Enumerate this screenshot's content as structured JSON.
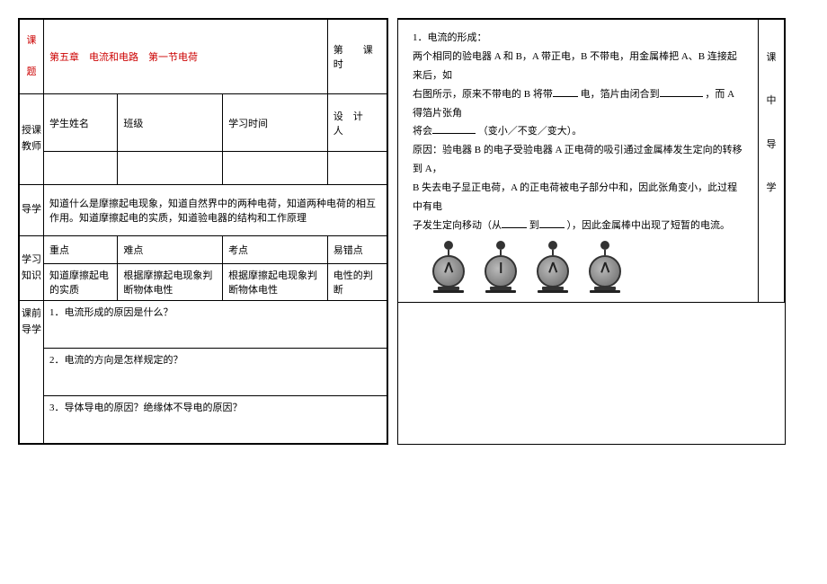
{
  "left": {
    "labels": {
      "ke_ti": "课\n\n题",
      "shou_ke": "授课教师",
      "dao_xue": "导学",
      "xue_xi": "学习知识",
      "ke_qian": "课前导学"
    },
    "title": "第五章　电流和电路　第一节电荷",
    "period_label": "第　　课时",
    "student_name_label": "学生姓名",
    "class_label": "班级",
    "study_time_label": "学习时间",
    "designer_label": "设　计　人",
    "objective": "知道什么是摩擦起电现象，知道自然界中的两种电荷，知道两种电荷的相互作用。知道摩擦起电的实质，知道验电器的结构和工作原理",
    "pts": {
      "zhongdian": "重点",
      "nandian": "难点",
      "kaodian": "考点",
      "yicuo": "易错点"
    },
    "pts2": {
      "c1": "知道摩擦起电的实质",
      "c2": "根据摩擦起电现象判断物体电性",
      "c3": "根据摩擦起电现象判断物体电性",
      "c4": "电性的判断"
    },
    "q1": "1．电流形成的原因是什么？",
    "q2": "2．电流的方向是怎样规定的？",
    "q3": "3．导体导电的原因？绝缘体不导电的原因？"
  },
  "right": {
    "vlabel": "课\n\n中\n\n导\n\n学",
    "line1": "1．电流的形成：",
    "line2a": "两个相同的验电器 A 和 B，A 带正电，B 不带电，用金属棒把 A、B 连接起来后，如",
    "line2b": "右图所示，原来不带电的 B 将带",
    "line2c": "电，箔片由闭合到",
    "line2d": "，而 A 得箔片张角",
    "line2e": "将会",
    "line2f": "（变小／不变／变大）。",
    "line3": "原因：验电器 B 的电子受验电器 A 正电荷的吸引通过金属棒发生定向的转移到 A，",
    "line4": "B 失去电子显正电荷，A 的正电荷被电子部分中和，因此张角变小，此过程中有电",
    "line5a": "子发生定向移动（从",
    "line5b": "到",
    "line5c": "），因此金属棒中出现了短暂的电流。"
  }
}
